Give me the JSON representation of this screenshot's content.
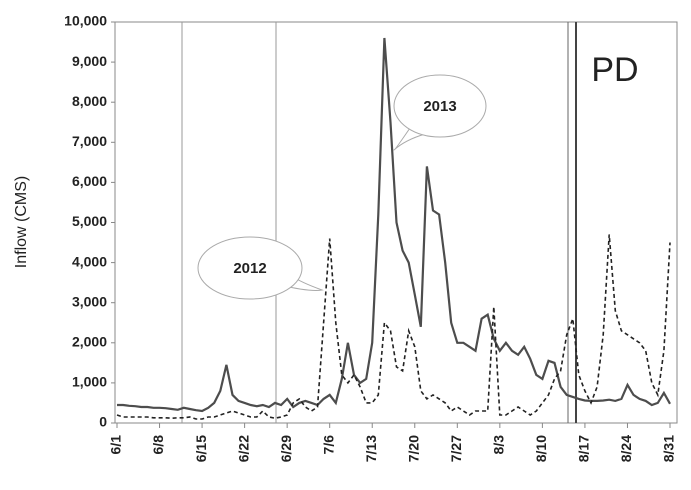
{
  "chart_data": {
    "type": "line",
    "y_label": "Inflow (CMS)",
    "annotation": "PD",
    "categories": [
      "6/1",
      null,
      null,
      null,
      null,
      null,
      null,
      "6/8",
      null,
      null,
      null,
      null,
      null,
      null,
      "6/15",
      null,
      null,
      null,
      null,
      null,
      null,
      "6/22",
      null,
      null,
      null,
      null,
      null,
      null,
      "6/29",
      null,
      null,
      null,
      null,
      null,
      null,
      "7/6",
      null,
      null,
      null,
      null,
      null,
      null,
      "7/13",
      null,
      null,
      null,
      null,
      null,
      null,
      "7/20",
      null,
      null,
      null,
      null,
      null,
      null,
      "7/27",
      null,
      null,
      null,
      null,
      null,
      null,
      "8/3",
      null,
      null,
      null,
      null,
      null,
      null,
      "8/10",
      null,
      null,
      null,
      null,
      null,
      null,
      "8/17",
      null,
      null,
      null,
      null,
      null,
      null,
      "8/24",
      null,
      null,
      null,
      null,
      null,
      null,
      "8/31"
    ],
    "series": [
      {
        "name": "2013",
        "color": "#4d4d4d",
        "line_style": "solid",
        "values": [
          450,
          450,
          430,
          420,
          400,
          400,
          380,
          380,
          370,
          350,
          330,
          380,
          350,
          320,
          300,
          380,
          500,
          800,
          1450,
          700,
          550,
          500,
          450,
          420,
          450,
          400,
          500,
          450,
          600,
          400,
          500,
          550,
          500,
          450,
          600,
          700,
          500,
          1100,
          2000,
          1200,
          1000,
          1100,
          2000,
          5200,
          9600,
          7500,
          5000,
          4300,
          4000,
          3200,
          2400,
          6400,
          5300,
          5200,
          4000,
          2500,
          2000,
          2000,
          1900,
          1800,
          2600,
          2700,
          2100,
          1800,
          2000,
          1800,
          1700,
          1900,
          1600,
          1200,
          1100,
          1550,
          1500,
          900,
          700,
          650,
          600,
          560,
          550,
          550,
          560,
          580,
          550,
          600,
          950,
          700,
          600,
          550,
          450,
          500,
          750,
          480
        ]
      },
      {
        "name": "2012",
        "color": "#222222",
        "line_style": "dashed",
        "values": [
          200,
          150,
          150,
          150,
          150,
          150,
          130,
          130,
          130,
          120,
          130,
          130,
          150,
          100,
          100,
          150,
          150,
          200,
          250,
          300,
          250,
          200,
          150,
          150,
          300,
          150,
          120,
          150,
          200,
          500,
          600,
          400,
          300,
          400,
          2500,
          4600,
          2500,
          1200,
          1000,
          1200,
          900,
          500,
          500,
          700,
          2500,
          2300,
          1400,
          1300,
          2300,
          1900,
          800,
          600,
          700,
          600,
          500,
          300,
          400,
          300,
          200,
          300,
          300,
          300,
          2900,
          200,
          200,
          300,
          400,
          300,
          200,
          300,
          500,
          700,
          1100,
          1300,
          2200,
          2600,
          1200,
          800,
          500,
          900,
          2200,
          4700,
          2800,
          2300,
          2200,
          2100,
          2000,
          1800,
          1000,
          700,
          1800,
          4500
        ]
      }
    ],
    "ylim": [
      0,
      10000
    ],
    "yticks": [
      0,
      {
        "value": 1000,
        "label": "1,000"
      },
      {
        "value": 2000,
        "label": "2,000"
      },
      {
        "value": 3000,
        "label": "3,000"
      },
      {
        "value": 4000,
        "label": "4,000"
      },
      {
        "value": 5000,
        "label": "5,000"
      },
      {
        "value": 6000,
        "label": "6,000"
      },
      {
        "value": 7000,
        "label": "7,000"
      },
      {
        "value": 8000,
        "label": "8,000"
      },
      {
        "value": 9000,
        "label": "9,000"
      },
      {
        "value": 10000,
        "label": "10,000"
      }
    ]
  }
}
